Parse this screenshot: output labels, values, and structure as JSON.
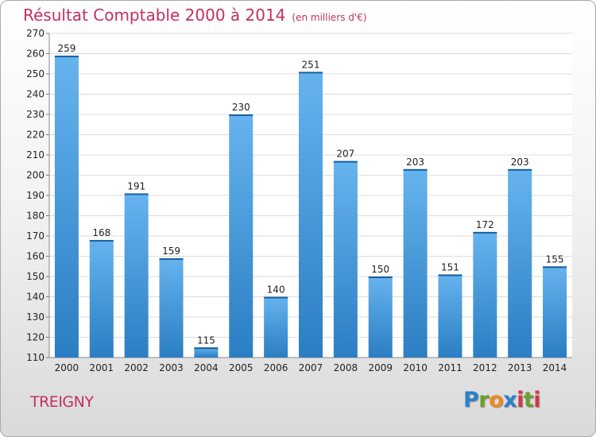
{
  "header": {
    "title": "Résultat Comptable 2000 à 2014",
    "subtitle": "(en milliers d'€)"
  },
  "commune": "TREIGNY",
  "logo": {
    "letters": [
      "P",
      "r",
      "o",
      "x",
      "i",
      "t",
      "i"
    ],
    "colors": [
      "#2a82c9",
      "#6aa12d",
      "#f08a1c",
      "#2a82c9",
      "#d6364a",
      "#6aa12d",
      "#d6364a"
    ]
  },
  "colors": {
    "bar_light": "#66b3ee",
    "bar_dark": "#2b7ec3",
    "bar_top": "#1a5f9e",
    "title": "#c42f63",
    "plot_bg": "#ffffff",
    "grid": "#dcdcdc"
  },
  "chart_data": {
    "type": "bar",
    "title": "Résultat Comptable 2000 à 2014",
    "subtitle": "(en milliers d'€)",
    "categories": [
      "2000",
      "2001",
      "2002",
      "2003",
      "2004",
      "2005",
      "2006",
      "2007",
      "2008",
      "2009",
      "2010",
      "2011",
      "2012",
      "2013",
      "2014"
    ],
    "values": [
      259,
      168,
      191,
      159,
      115,
      230,
      140,
      251,
      207,
      150,
      203,
      151,
      172,
      203,
      155
    ],
    "xlabel": "",
    "ylabel": "",
    "ylim": [
      110,
      270
    ],
    "ytick_step": 10,
    "grid": true,
    "legend": false
  }
}
